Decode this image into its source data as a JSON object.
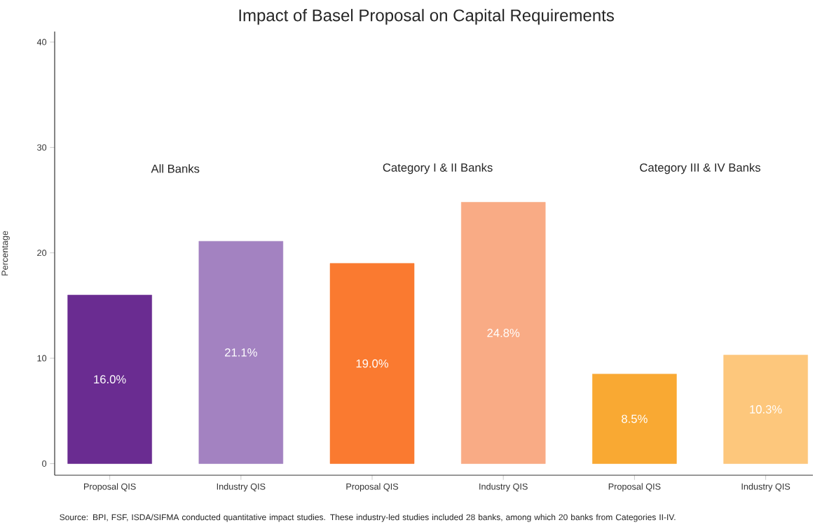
{
  "chart_data": {
    "type": "bar",
    "title": "Impact of Basel Proposal on Capital Requirements",
    "ylabel": "Percentage",
    "categories": [
      "Proposal QIS",
      "Industry QIS",
      "Proposal QIS",
      "Industry QIS",
      "Proposal QIS",
      "Industry QIS"
    ],
    "values": [
      16.0,
      21.1,
      19.0,
      24.8,
      8.5,
      10.3
    ],
    "colors": [
      "#6a2c91",
      "#a382c1",
      "#fa7a30",
      "#f9ab85",
      "#f9a933",
      "#fdc77c"
    ],
    "value_labels": [
      "16.0%",
      "21.1%",
      "19.0%",
      "24.8%",
      "8.5%",
      "10.3%"
    ],
    "ylim": [
      -1.1,
      41
    ],
    "yticks": [
      0,
      10,
      20,
      30,
      40
    ],
    "annotations": [
      "All Banks",
      "Category I & II Banks",
      "Category III & IV Banks",
      "Source: BPI, FSF, ISDA/SIFMA conducted quantitative impact studies. These industry-led studies included 28 banks, among which 20 banks from Categories II-IV."
    ],
    "grid": false
  }
}
